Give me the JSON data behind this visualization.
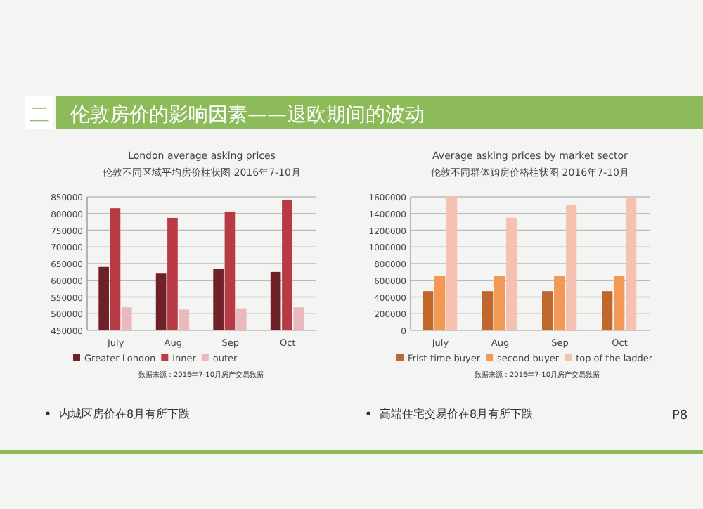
{
  "chart_data": [
    {
      "type": "bar",
      "title": "London average asking prices",
      "subtitle": "伦敦不同区域平均房价柱状图 2016年7-10月",
      "categories": [
        "July",
        "Aug",
        "Sep",
        "Oct"
      ],
      "series": [
        {
          "name": "Greater London",
          "color": "#6e2228",
          "values": [
            640000,
            620000,
            635000,
            625000
          ]
        },
        {
          "name": "inner",
          "color": "#b83a44",
          "values": [
            816000,
            787000,
            806000,
            841000
          ]
        },
        {
          "name": "outer",
          "color": "#eab9bd",
          "values": [
            519000,
            512000,
            516000,
            519000
          ]
        }
      ],
      "ylim": [
        450000,
        850000
      ],
      "yticks": [
        450000,
        500000,
        550000,
        600000,
        650000,
        700000,
        750000,
        800000,
        850000
      ],
      "grid": "y",
      "legend": "bottom",
      "annotations": [
        "二",
        "伦敦房价的影响因素——退欧期间的波动",
        "数据来源：2016年7-10月房产交易数据",
        "内城区房价在8月有所下跌"
      ]
    },
    {
      "type": "bar",
      "title": "Average asking prices by market sector",
      "subtitle": "伦敦不同群体购房价格柱状图 2016年7-10月",
      "categories": [
        "July",
        "Aug",
        "Sep",
        "Oct"
      ],
      "series": [
        {
          "name": "Frist-time buyer",
          "color": "#c0672c",
          "values": [
            470000,
            470000,
            470000,
            470000
          ]
        },
        {
          "name": "second buyer",
          "color": "#f29a55",
          "values": [
            650000,
            650000,
            650000,
            650000
          ]
        },
        {
          "name": "top of the ladder",
          "color": "#f5c2b2",
          "values": [
            1600000,
            1350000,
            1500000,
            1600000
          ]
        }
      ],
      "ylim": [
        0,
        1600000
      ],
      "yticks": [
        0,
        200000,
        400000,
        600000,
        800000,
        1000000,
        1200000,
        1400000,
        1600000
      ],
      "grid": "y",
      "legend": "bottom",
      "annotations": [
        "数据来源：2016年7-10月房产交易数据",
        "高端住宅交易价在8月有所下跌",
        "P8"
      ]
    }
  ]
}
